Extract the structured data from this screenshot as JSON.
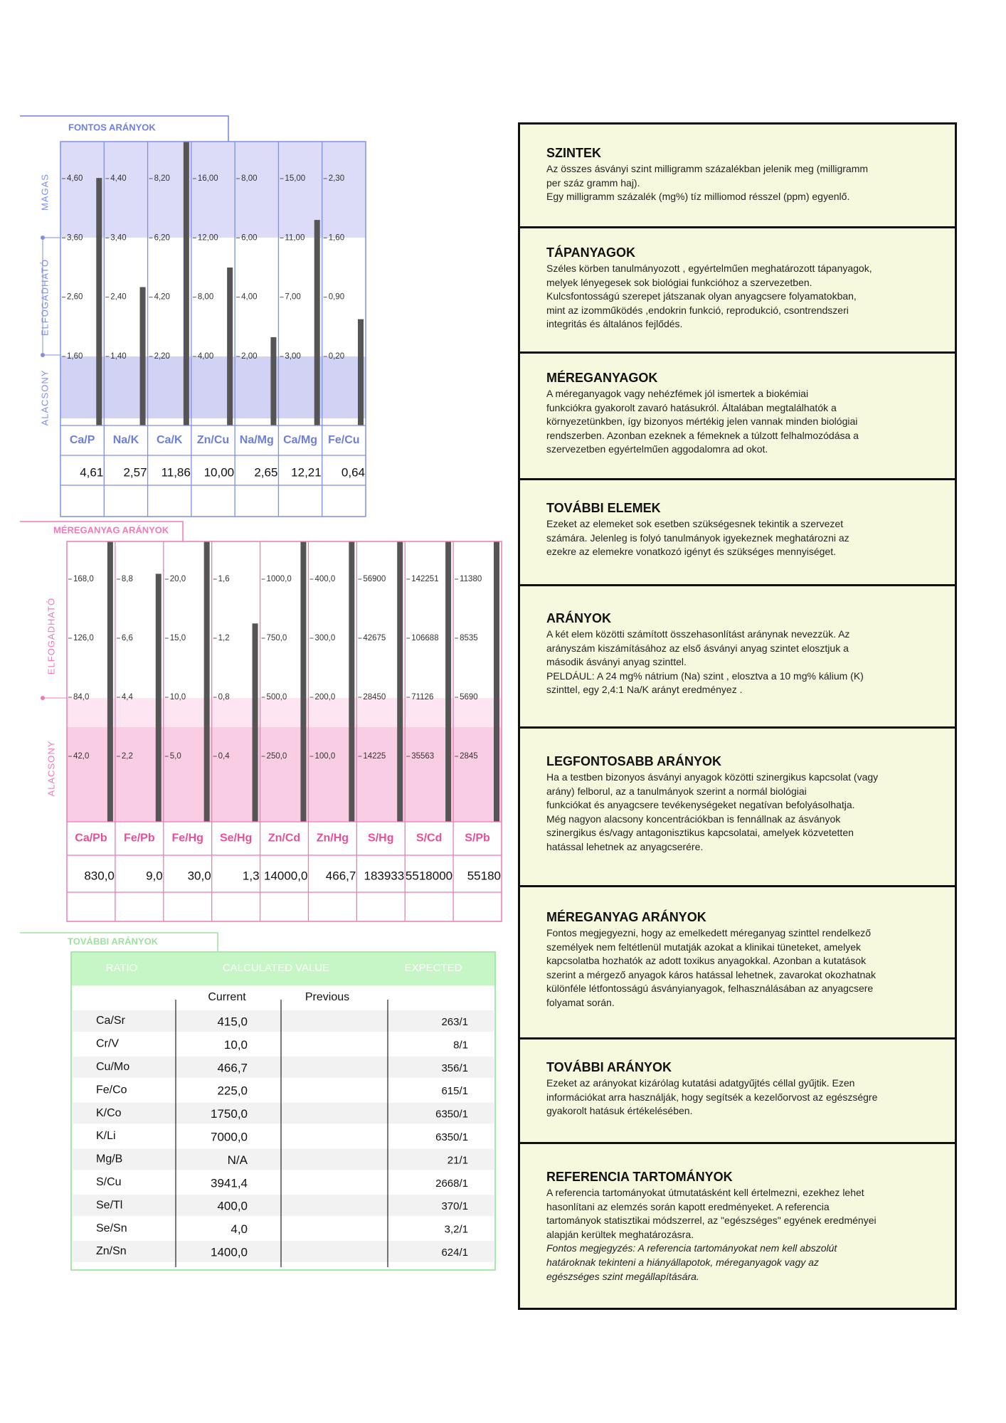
{
  "important_ratios": {
    "title": "FONTOS ARÁNYOK",
    "zone_labels": [
      "MAGAS",
      "ELFOGADHATÓ",
      "ALACSONY"
    ],
    "columns": [
      {
        "label": "Ca/P",
        "ticks": [
          {
            "value": 4.6,
            "label": "4,60"
          },
          {
            "value": 3.6,
            "label": "3,60"
          },
          {
            "value": 2.6,
            "label": "2,60"
          },
          {
            "value": 1.6,
            "label": "1,60"
          }
        ],
        "value": 4.61,
        "value_label": "4,61"
      },
      {
        "label": "Na/K",
        "ticks": [
          {
            "value": 4.4,
            "label": "4,40"
          },
          {
            "value": 3.4,
            "label": "3,40"
          },
          {
            "value": 2.4,
            "label": "2,40"
          },
          {
            "value": 1.4,
            "label": "1,40"
          }
        ],
        "value": 2.57,
        "value_label": "2,57"
      },
      {
        "label": "Ca/K",
        "ticks": [
          {
            "value": 8.2,
            "label": "8,20"
          },
          {
            "value": 6.2,
            "label": "6,20"
          },
          {
            "value": 4.2,
            "label": "4,20"
          },
          {
            "value": 2.2,
            "label": "2,20"
          }
        ],
        "value": 11.86,
        "value_label": "11,86"
      },
      {
        "label": "Zn/Cu",
        "ticks": [
          {
            "value": 16,
            "label": "16,00"
          },
          {
            "value": 12,
            "label": "12,00"
          },
          {
            "value": 8,
            "label": "8,00"
          },
          {
            "value": 4,
            "label": "4,00"
          }
        ],
        "value": 10,
        "value_label": "10,00"
      },
      {
        "label": "Na/Mg",
        "ticks": [
          {
            "value": 8,
            "label": "8,00"
          },
          {
            "value": 6,
            "label": "6,00"
          },
          {
            "value": 4,
            "label": "4,00"
          },
          {
            "value": 2,
            "label": "2,00"
          }
        ],
        "value": 2.65,
        "value_label": "2,65"
      },
      {
        "label": "Ca/Mg",
        "ticks": [
          {
            "value": 15,
            "label": "15,00"
          },
          {
            "value": 11,
            "label": "11,00"
          },
          {
            "value": 7,
            "label": "7,00"
          },
          {
            "value": 3,
            "label": "3,00"
          }
        ],
        "value": 12.21,
        "value_label": "12,21"
      },
      {
        "label": "Fe/Cu",
        "ticks": [
          {
            "value": 2.3,
            "label": "2,30"
          },
          {
            "value": 1.6,
            "label": "1,60"
          },
          {
            "value": 0.9,
            "label": "0,90"
          },
          {
            "value": 0.2,
            "label": "0,20"
          }
        ],
        "value": 0.64,
        "value_label": "0,64"
      }
    ]
  },
  "toxic_ratios": {
    "title": "MÉREGANYAG ARÁNYOK",
    "zone_labels": [
      "ELFOGADHATÓ",
      "ALACSONY"
    ],
    "columns": [
      {
        "label": "Ca/Pb",
        "ticks": [
          {
            "value": 168,
            "label": "168,0"
          },
          {
            "value": 126,
            "label": "126,0"
          },
          {
            "value": 84,
            "label": "84,0"
          },
          {
            "value": 42,
            "label": "42,0"
          }
        ],
        "value": 830,
        "value_label": "830,0"
      },
      {
        "label": "Fe/Pb",
        "ticks": [
          {
            "value": 8.8,
            "label": "8,8"
          },
          {
            "value": 6.6,
            "label": "6,6"
          },
          {
            "value": 4.4,
            "label": "4,4"
          },
          {
            "value": 2.2,
            "label": "2,2"
          }
        ],
        "value": 9,
        "value_label": "9,0"
      },
      {
        "label": "Fe/Hg",
        "ticks": [
          {
            "value": 20,
            "label": "20,0"
          },
          {
            "value": 15,
            "label": "15,0"
          },
          {
            "value": 10,
            "label": "10,0"
          },
          {
            "value": 5,
            "label": "5,0"
          }
        ],
        "value": 30,
        "value_label": "30,0"
      },
      {
        "label": "Se/Hg",
        "ticks": [
          {
            "value": 1.6,
            "label": "1,6"
          },
          {
            "value": 1.2,
            "label": "1,2"
          },
          {
            "value": 0.8,
            "label": "0,8"
          },
          {
            "value": 0.4,
            "label": "0,4"
          }
        ],
        "value": 1.3,
        "value_label": "1,3"
      },
      {
        "label": "Zn/Cd",
        "ticks": [
          {
            "value": 1000,
            "label": "1000,0"
          },
          {
            "value": 750,
            "label": "750,0"
          },
          {
            "value": 500,
            "label": "500,0"
          },
          {
            "value": 250,
            "label": "250,0"
          }
        ],
        "value": 14000,
        "value_label": "14000,0"
      },
      {
        "label": "Zn/Hg",
        "ticks": [
          {
            "value": 400,
            "label": "400,0"
          },
          {
            "value": 300,
            "label": "300,0"
          },
          {
            "value": 200,
            "label": "200,0"
          },
          {
            "value": 100,
            "label": "100,0"
          }
        ],
        "value": 466.7,
        "value_label": "466,7"
      },
      {
        "label": "S/Hg",
        "ticks": [
          56900,
          42675,
          28450,
          14225
        ],
        "value": 183933
      },
      {
        "label": "S/Cd",
        "ticks": [
          142251,
          106688,
          71126,
          35563
        ],
        "value": 5518000
      },
      {
        "label": "S/Pb",
        "ticks": [
          11380,
          8535,
          5690,
          2845
        ],
        "value": 55180
      }
    ]
  },
  "additional_ratios": {
    "title": "TOVÁBBI ARÁNYOK",
    "header": [
      "RATIO",
      "CALCULATED VALUE",
      "EXPECTED"
    ],
    "subheader": [
      "Current",
      "Previous"
    ],
    "rows": [
      [
        "Ca/Sr",
        "415,0",
        "263/1"
      ],
      [
        "Cr/V",
        "10,0",
        "8/1"
      ],
      [
        "Cu/Mo",
        "466,7",
        "356/1"
      ],
      [
        "Fe/Co",
        "225,0",
        "615/1"
      ],
      [
        "K/Co",
        "1750,0",
        "6350/1"
      ],
      [
        "K/Li",
        "7000,0",
        "6350/1"
      ],
      [
        "Mg/B",
        "N/A",
        "21/1"
      ],
      [
        "S/Cu",
        "3941,4",
        "2668/1"
      ],
      [
        "Se/Tl",
        "400,0",
        "370/1"
      ],
      [
        "Se/Sn",
        "4,0",
        "3,2/1"
      ],
      [
        "Zn/Sn",
        "1400,0",
        "624/1"
      ]
    ]
  },
  "info_sections": [
    {
      "title": "SZINTEK",
      "lines": [
        "Az összes ásványi szint milligramm százalékban jelenik meg (milligramm",
        "per száz gramm haj).",
        "Egy milligramm százalék (mg%) tíz milliomod résszel (ppm) egyenlő."
      ]
    },
    {
      "title": "TÁPANYAGOK",
      "lines": [
        "Széles körben tanulmányozott , egyértelműen meghatározott tápanyagok,",
        "melyek lényegesek sok biológiai funkcióhoz a szervezetben.",
        "Kulcsfontosságú szerepet játszanak olyan anyagcsere folyamatokban,",
        "mint az izomműködés ,endokrin funkció, reprodukció, csontrendszeri",
        "integritás és általános fejlődés."
      ]
    },
    {
      "title": "MÉREGANYAGOK",
      "lines": [
        "A méreganyagok vagy nehézfémek jól ismertek a biokémiai",
        "funkciókra gyakorolt zavaró hatásukról. Általában megtalálhatók a",
        "környezetünkben, így bizonyos mértékig jelen vannak minden biológiai",
        "rendszerben. Azonban ezeknek a fémeknek a túlzott felhalmozódása a",
        "szervezetben egyértelműen aggodalomra ad okot."
      ]
    },
    {
      "title": "TOVÁBBI ELEMEK",
      "lines": [
        "Ezeket az elemeket sok esetben szükségesnek tekintik a szervezet",
        "számára. Jelenleg is folyó tanulmányok igyekeznek meghatározni az",
        "ezekre az elemekre vonatkozó igényt és szükséges mennyiséget."
      ]
    },
    {
      "title": "ARÁNYOK",
      "lines": [
        "A két elem közötti számított összehasonlítást aránynak nevezzük. Az",
        "arányszám kiszámításához az első ásványi anyag  szintet elosztjuk a",
        "második ásványi anyag szinttel.",
        "PELDÁUL:  A 24 mg% nátrium (Na) szint , elosztva a 10 mg% kálium (K)",
        "szinttel, egy 2,4:1 Na/K arányt eredményez ."
      ]
    },
    {
      "title": "LEGFONTOSABB ARÁNYOK",
      "lines": [
        "Ha a testben bizonyos ásványi anyagok közötti szinergikus kapcsolat (vagy",
        "arány) felborul, az a tanulmányok szerint a normál biológiai",
        "funkciókat és anyagcsere tevékenységeket negatívan befolyásolhatja.",
        "Még nagyon alacsony koncentrációkban is fennállnak az ásványok",
        "szinergikus és/vagy antagonisztikus kapcsolatai, amelyek közvetetten",
        "hatással lehetnek az anyagcserére."
      ]
    },
    {
      "title": "MÉREGANYAG ARÁNYOK",
      "lines": [
        "Fontos megjegyezni, hogy az emelkedett méreganyag szinttel rendelkező",
        "személyek nem feltétlenül mutatják azokat a klinikai tüneteket, amelyek",
        "kapcsolatba hozhatók az adott toxikus anyagokkal. Azonban a kutatások",
        "szerint a mérgező anyagok káros hatással lehetnek, zavarokat okozhatnak",
        "különféle létfontosságú ásványianyagok, felhasználásában az anyagcsere",
        "folyamat során."
      ]
    },
    {
      "title": "TOVÁBBI ARÁNYOK",
      "lines": [
        "Ezeket az arányokat kizárólag kutatási adatgyűjtés céllal gyűjtik. Ezen",
        "információkat arra használják, hogy segítsék a kezelőorvost az egészségre",
        "gyakorolt hatásuk értékelésében."
      ]
    },
    {
      "title": "REFERENCIA TARTOMÁNYOK",
      "lines": [
        "A referencia tartományokat útmutatásként kell értelmezni, ezekhez lehet",
        "hasonlítani az elemzés során kapott eredményeket. A referencia",
        "tartományok statisztikai módszerrel,  az \"egészséges\" egyének eredményei",
        "alapján kerültek meghatározásra."
      ],
      "note_lines": [
        "Fontos megjegyzés: A referencia tartományokat nem kell abszolút",
        "határoknak tekinteni a hiányállapotok, méreganyagok vagy az",
        "egészséges szint megállapítására."
      ]
    }
  ]
}
